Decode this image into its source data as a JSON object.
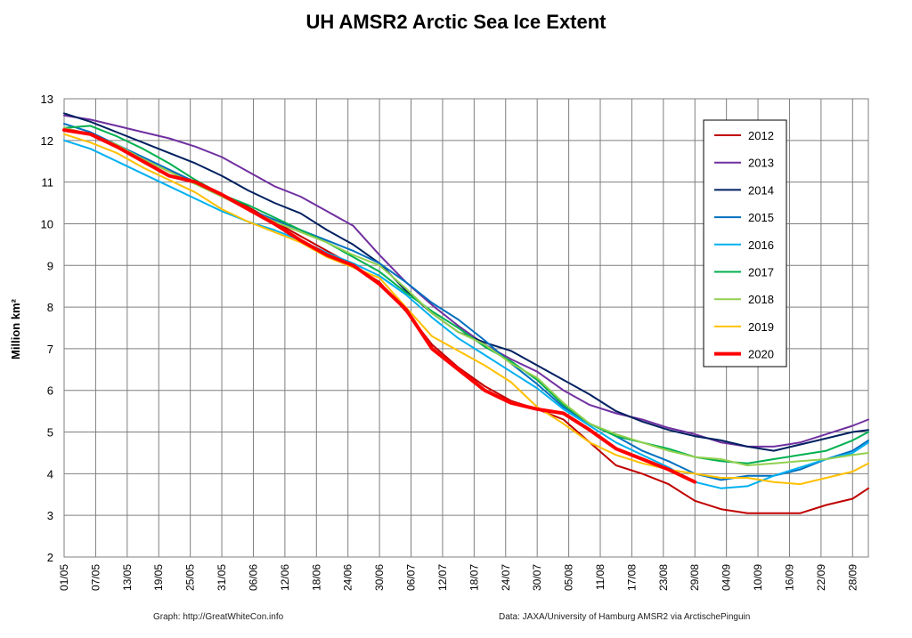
{
  "title": "UH AMSR2 Arctic Sea Ice Extent",
  "footer": {
    "left": "Graph: http://GreatWhiteCon.info",
    "right": "Data: JAXA/University of Hamburg AMSR2 via ArctischePinguin"
  },
  "chart_data": {
    "type": "line",
    "title": "UH AMSR2 Arctic Sea Ice Extent",
    "ylabel": "Million km²",
    "xlabel": "",
    "ylim": [
      2,
      13
    ],
    "yticks": [
      2,
      3,
      4,
      5,
      6,
      7,
      8,
      9,
      10,
      11,
      12,
      13
    ],
    "xlim": [
      "01/05",
      "01/10"
    ],
    "xticks": [
      "01/05",
      "07/05",
      "13/05",
      "19/05",
      "25/05",
      "31/05",
      "06/06",
      "12/06",
      "18/06",
      "24/06",
      "30/06",
      "06/07",
      "12/07",
      "18/07",
      "24/07",
      "30/07",
      "05/08",
      "11/08",
      "17/08",
      "23/08",
      "29/08",
      "04/09",
      "10/09",
      "16/09",
      "22/09",
      "28/09"
    ],
    "grid": true,
    "legend_position": "right",
    "x_dates": [
      "01/05",
      "06/05",
      "11/05",
      "16/05",
      "21/05",
      "26/05",
      "31/05",
      "05/06",
      "10/06",
      "15/06",
      "20/06",
      "25/06",
      "30/06",
      "05/07",
      "10/07",
      "15/07",
      "20/07",
      "25/07",
      "30/07",
      "04/08",
      "09/08",
      "14/08",
      "19/08",
      "24/08",
      "29/08",
      "03/09",
      "08/09",
      "13/09",
      "18/09",
      "23/09",
      "28/09",
      "01/10"
    ],
    "series": [
      {
        "name": "2012",
        "color": "#c00000",
        "width": 2,
        "values": [
          12.3,
          12.15,
          11.9,
          11.55,
          11.25,
          11.0,
          10.7,
          10.4,
          10.05,
          9.7,
          9.35,
          9.0,
          8.6,
          7.9,
          7.1,
          6.55,
          6.1,
          5.75,
          5.55,
          5.3,
          4.75,
          4.2,
          4.0,
          3.75,
          3.35,
          3.15,
          3.05,
          3.05,
          3.05,
          3.25,
          3.4,
          3.65
        ]
      },
      {
        "name": "2013",
        "color": "#7030a0",
        "width": 2,
        "values": [
          12.6,
          12.5,
          12.35,
          12.2,
          12.05,
          11.85,
          11.6,
          11.25,
          10.9,
          10.65,
          10.3,
          9.95,
          9.25,
          8.6,
          8.05,
          7.55,
          7.1,
          6.75,
          6.45,
          6.0,
          5.65,
          5.45,
          5.3,
          5.1,
          4.95,
          4.75,
          4.65,
          4.65,
          4.75,
          4.95,
          5.15,
          5.3
        ]
      },
      {
        "name": "2014",
        "color": "#002060",
        "width": 2,
        "values": [
          12.65,
          12.45,
          12.2,
          11.95,
          11.7,
          11.45,
          11.15,
          10.8,
          10.5,
          10.25,
          9.85,
          9.5,
          9.05,
          8.4,
          7.85,
          7.4,
          7.15,
          6.95,
          6.6,
          6.25,
          5.9,
          5.5,
          5.25,
          5.05,
          4.9,
          4.8,
          4.65,
          4.55,
          4.7,
          4.85,
          5.0,
          5.05
        ]
      },
      {
        "name": "2015",
        "color": "#0070c0",
        "width": 2,
        "values": [
          12.4,
          12.2,
          11.9,
          11.6,
          11.3,
          11.0,
          10.7,
          10.35,
          10.1,
          9.85,
          9.6,
          9.35,
          9.05,
          8.6,
          8.1,
          7.7,
          7.2,
          6.65,
          6.15,
          5.6,
          5.2,
          4.9,
          4.55,
          4.3,
          4.0,
          3.85,
          3.95,
          3.95,
          4.1,
          4.35,
          4.55,
          4.8
        ]
      },
      {
        "name": "2016",
        "color": "#00b0f0",
        "width": 2,
        "values": [
          12.0,
          11.8,
          11.5,
          11.2,
          10.9,
          10.6,
          10.3,
          10.05,
          9.85,
          9.6,
          9.3,
          9.05,
          8.75,
          8.3,
          7.75,
          7.25,
          6.85,
          6.45,
          6.05,
          5.55,
          5.15,
          4.75,
          4.45,
          4.15,
          3.8,
          3.65,
          3.7,
          3.95,
          4.15,
          4.35,
          4.5,
          4.75
        ]
      },
      {
        "name": "2017",
        "color": "#00b050",
        "width": 2,
        "values": [
          12.3,
          12.35,
          12.1,
          11.8,
          11.45,
          11.05,
          10.7,
          10.45,
          10.15,
          9.85,
          9.55,
          9.2,
          8.85,
          8.35,
          7.9,
          7.5,
          7.05,
          6.7,
          6.25,
          5.65,
          5.2,
          4.9,
          4.75,
          4.6,
          4.4,
          4.3,
          4.25,
          4.35,
          4.45,
          4.55,
          4.8,
          5.0
        ]
      },
      {
        "name": "2018",
        "color": "#92d050",
        "width": 2,
        "values": [
          12.3,
          12.15,
          11.9,
          11.55,
          11.25,
          10.95,
          10.65,
          10.35,
          10.05,
          9.8,
          9.55,
          9.25,
          9.0,
          8.45,
          7.85,
          7.4,
          7.1,
          6.65,
          6.3,
          5.7,
          5.2,
          4.95,
          4.75,
          4.55,
          4.4,
          4.35,
          4.2,
          4.25,
          4.3,
          4.35,
          4.45,
          4.5
        ]
      },
      {
        "name": "2019",
        "color": "#ffc000",
        "width": 2,
        "values": [
          12.15,
          11.95,
          11.7,
          11.35,
          11.05,
          10.75,
          10.35,
          10.05,
          9.8,
          9.55,
          9.2,
          8.95,
          8.7,
          8.0,
          7.3,
          6.95,
          6.6,
          6.2,
          5.6,
          5.2,
          4.75,
          4.45,
          4.25,
          4.1,
          4.0,
          3.9,
          3.9,
          3.8,
          3.75,
          3.9,
          4.05,
          4.25
        ]
      },
      {
        "name": "2020",
        "color": "#ff0000",
        "width": 4,
        "values": [
          12.25,
          12.15,
          11.85,
          11.5,
          11.15,
          11.0,
          10.7,
          10.35,
          10.0,
          9.6,
          9.25,
          9.0,
          8.55,
          7.95,
          7.0,
          6.5,
          6.0,
          5.7,
          5.55,
          5.45,
          5.05,
          4.6,
          4.35,
          4.1,
          3.8,
          null,
          null,
          null,
          null,
          null,
          null,
          null
        ]
      }
    ]
  }
}
